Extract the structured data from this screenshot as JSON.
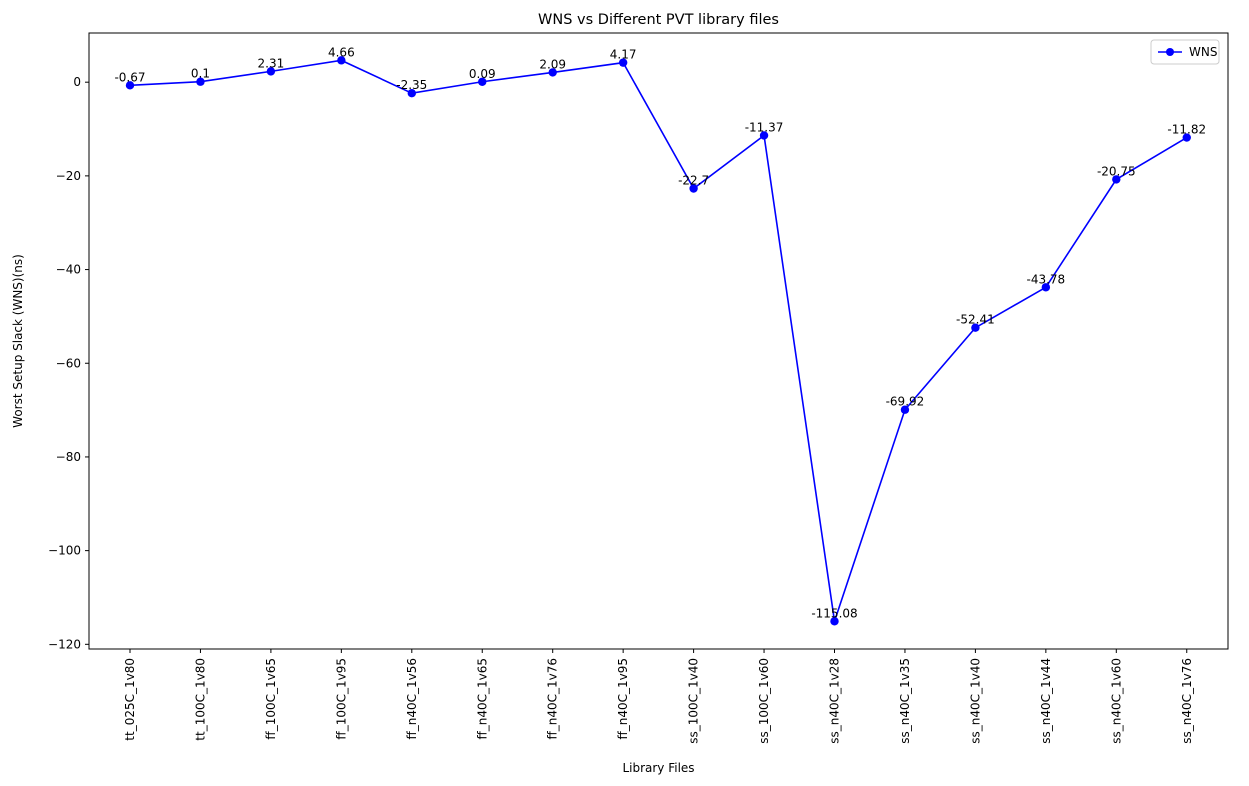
{
  "chart_data": {
    "type": "line",
    "title": "WNS vs Different PVT library files",
    "xlabel": "Library Files",
    "ylabel": "Worst Setup Slack (WNS)(ns)",
    "categories": [
      "tt_025C_1v80",
      "tt_100C_1v80",
      "ff_100C_1v65",
      "ff_100C_1v95",
      "ff_n40C_1v56",
      "ff_n40C_1v65",
      "ff_n40C_1v76",
      "ff_n40C_1v95",
      "ss_100C_1v40",
      "ss_100C_1v60",
      "ss_n40C_1v28",
      "ss_n40C_1v35",
      "ss_n40C_1v40",
      "ss_n40C_1v44",
      "ss_n40C_1v60",
      "ss_n40C_1v76"
    ],
    "series": [
      {
        "name": "WNS",
        "color": "#0000ff",
        "values": [
          -0.67,
          0.1,
          2.31,
          4.66,
          -2.35,
          0.09,
          2.09,
          4.17,
          -22.7,
          -11.37,
          -115.08,
          -69.92,
          -52.41,
          -43.78,
          -20.75,
          -11.82
        ],
        "labels": [
          "-0.67",
          "0.1",
          "2.31",
          "4.66",
          "-2.35",
          "0.09",
          "2.09",
          "4.17",
          "-22.7",
          "-11.37",
          "-115.08",
          "-69.92",
          "-52.41",
          "-43.78",
          "-20.75",
          "-11.82"
        ]
      }
    ],
    "ylim": [
      -121,
      10.5
    ],
    "yticks": [
      0,
      -20,
      -40,
      -60,
      -80,
      -100,
      -120
    ],
    "ytick_labels": [
      "0",
      "−20",
      "−40",
      "−60",
      "−80",
      "−100",
      "−120"
    ],
    "grid": false,
    "legend": {
      "position": "top-right",
      "label": "WNS"
    }
  }
}
